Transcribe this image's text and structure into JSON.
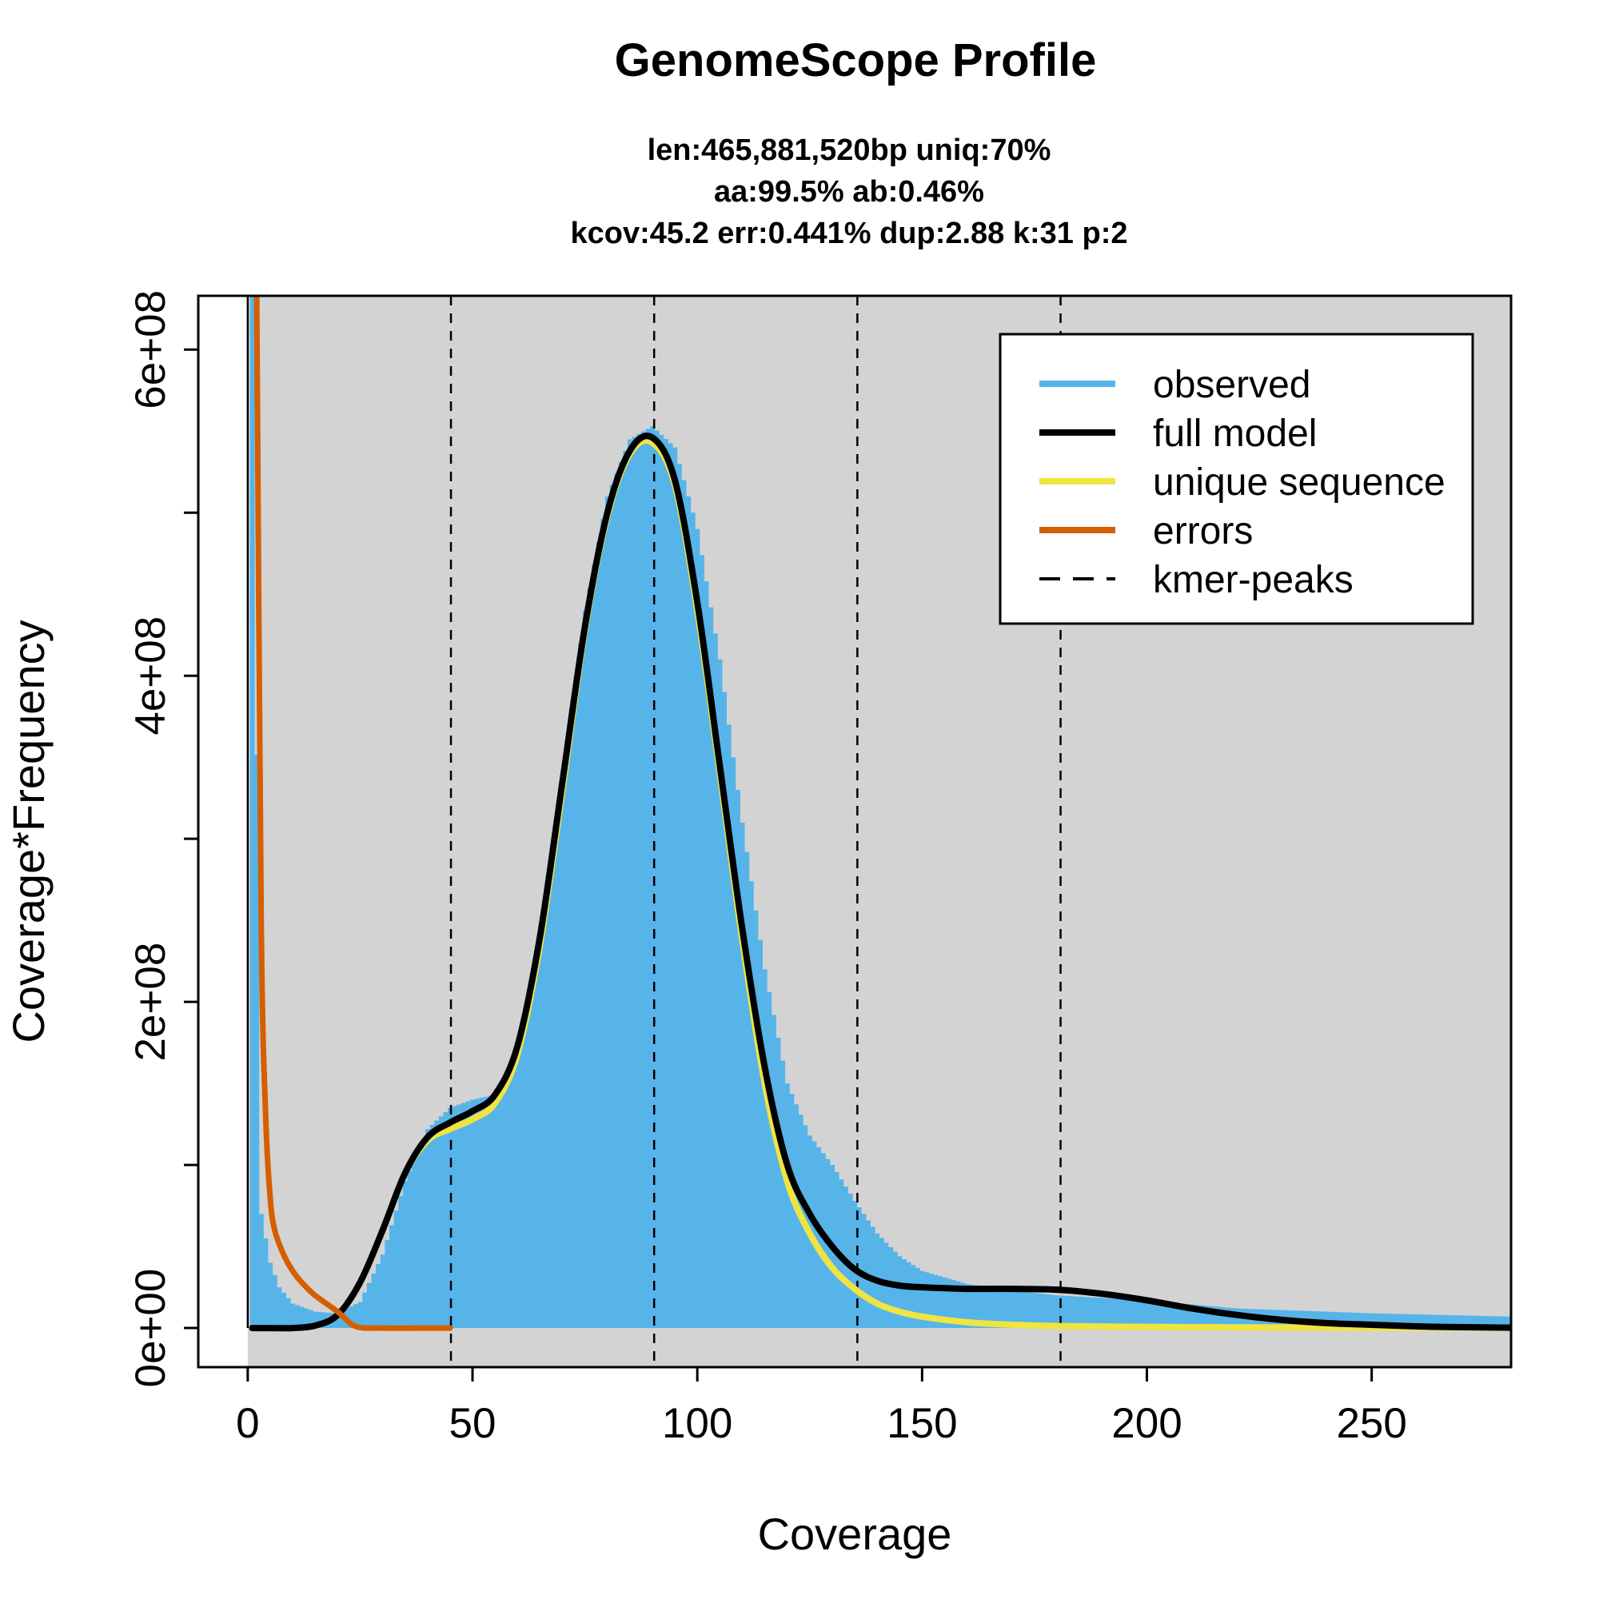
{
  "chart_data": {
    "type": "line",
    "title": "GenomeScope Profile",
    "subtitle_lines": [
      "len:465,881,520bp uniq:70%",
      "aa:99.5% ab:0.46%",
      "kcov:45.2 err:0.441%  dup:2.88  k:31 p:2"
    ],
    "xlabel": "Coverage",
    "ylabel": "Coverage*Frequency",
    "xlim": [
      -11,
      281
    ],
    "ylim": [
      -24000000,
      633000000
    ],
    "x_ticks": [
      0,
      50,
      100,
      150,
      200,
      250
    ],
    "x_tick_labels": [
      "0",
      "50",
      "100",
      "150",
      "200",
      "250"
    ],
    "y_ticks": [
      0,
      100000000,
      200000000,
      300000000,
      400000000,
      500000000,
      600000000
    ],
    "y_tick_labels": [
      "0e+00",
      "",
      "2e+08",
      "",
      "4e+08",
      "",
      "6e+08"
    ],
    "plot_background": "#d3d3d3",
    "grid": false,
    "legend_position": "top-right",
    "kmer_peaks": [
      45.2,
      90.4,
      135.6,
      180.8
    ],
    "series": [
      {
        "name": "observed",
        "style": "histogram",
        "color": "#56b4e9",
        "x": [
          1,
          3,
          5,
          7,
          10,
          15,
          20,
          25,
          30,
          35,
          40,
          45,
          50,
          55,
          60,
          65,
          70,
          75,
          80,
          85,
          90,
          95,
          100,
          105,
          110,
          115,
          120,
          125,
          130,
          135,
          140,
          145,
          150,
          160,
          170,
          180,
          200,
          220,
          250,
          281
        ],
        "y": [
          633000000,
          70000000,
          40000000,
          25000000,
          15000000,
          10000000,
          9000000,
          16000000,
          45000000,
          90000000,
          122000000,
          135000000,
          140000000,
          143000000,
          170000000,
          240000000,
          340000000,
          440000000,
          510000000,
          545000000,
          553000000,
          540000000,
          490000000,
          410000000,
          310000000,
          220000000,
          150000000,
          118000000,
          100000000,
          78000000,
          58000000,
          44000000,
          35000000,
          27000000,
          23000000,
          20000000,
          17000000,
          12000000,
          9000000,
          7000000
        ]
      },
      {
        "name": "full model",
        "style": "line",
        "color": "#000000",
        "x": [
          1,
          5,
          10,
          15,
          20,
          25,
          30,
          35,
          40,
          45,
          50,
          55,
          60,
          65,
          70,
          75,
          80,
          85,
          90,
          95,
          100,
          105,
          110,
          115,
          120,
          125,
          130,
          135,
          140,
          145,
          150,
          160,
          170,
          180,
          190,
          200,
          210,
          220,
          230,
          240,
          250,
          260,
          270,
          281
        ],
        "y": [
          0,
          0,
          0,
          1500000,
          8000000,
          28000000,
          60000000,
          95000000,
          117000000,
          126000000,
          133000000,
          143000000,
          173000000,
          240000000,
          335000000,
          430000000,
          500000000,
          538000000,
          546000000,
          520000000,
          445000000,
          345000000,
          245000000,
          160000000,
          100000000,
          70000000,
          50000000,
          36000000,
          29000000,
          26000000,
          25000000,
          24000000,
          24000000,
          23500000,
          21000000,
          17000000,
          12000000,
          8000000,
          5000000,
          3000000,
          2000000,
          1000000,
          500000,
          200000
        ]
      },
      {
        "name": "unique sequence",
        "style": "line",
        "color": "#f0e442",
        "x": [
          1,
          10,
          15,
          20,
          25,
          30,
          35,
          40,
          45,
          50,
          55,
          60,
          65,
          70,
          75,
          80,
          85,
          90,
          95,
          100,
          105,
          110,
          115,
          120,
          125,
          130,
          135,
          140,
          145,
          150,
          160,
          170,
          180,
          200,
          220,
          250,
          281
        ],
        "y": [
          0,
          0,
          1500000,
          8000000,
          28000000,
          60000000,
          95000000,
          115000000,
          122000000,
          128000000,
          138000000,
          168000000,
          235000000,
          330000000,
          428000000,
          498000000,
          536000000,
          543000000,
          517000000,
          440000000,
          340000000,
          238000000,
          150000000,
          90000000,
          58000000,
          37000000,
          24000000,
          15000000,
          10000000,
          7000000,
          3500000,
          2000000,
          1200000,
          700000,
          400000,
          200000,
          100000
        ]
      },
      {
        "name": "errors",
        "style": "line",
        "color": "#d55e00",
        "x": [
          2,
          3,
          4,
          5,
          6,
          8,
          10,
          12,
          15,
          20,
          24,
          30,
          40,
          45
        ],
        "y": [
          633000000,
          250000000,
          130000000,
          80000000,
          60000000,
          45000000,
          35000000,
          28000000,
          20000000,
          10000000,
          1000000,
          0,
          0,
          0
        ]
      },
      {
        "name": "kmer-peaks",
        "style": "dashed-vertical",
        "color": "#000000"
      }
    ],
    "legend": [
      "observed",
      "full model",
      "unique sequence",
      "errors",
      "kmer-peaks"
    ]
  }
}
